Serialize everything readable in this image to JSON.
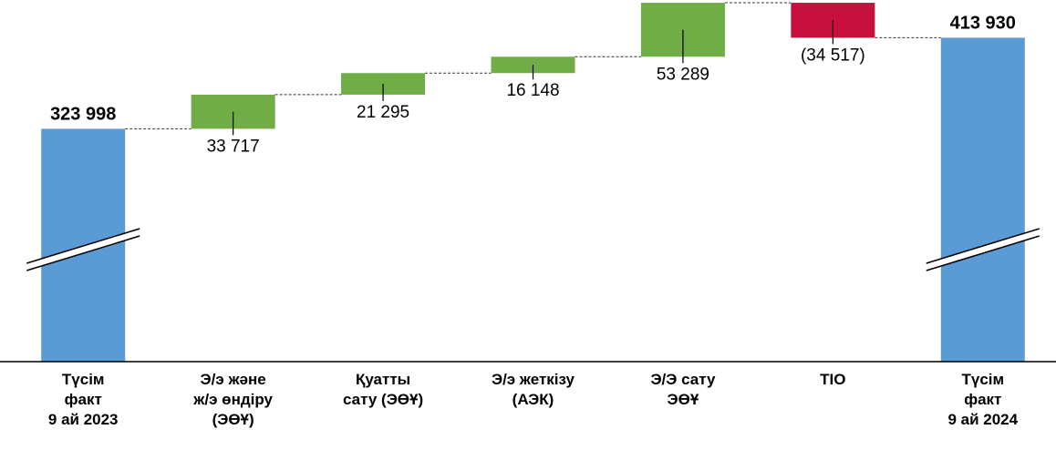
{
  "chart_data": {
    "type": "waterfall",
    "categories": [
      [
        "Түсім",
        "факт",
        "9 ай 2023"
      ],
      [
        "Э/э және",
        "ж/э өндіру",
        "(ЭӨҰ)"
      ],
      [
        "Қуатты",
        "сату (ЭӨҰ)"
      ],
      [
        "Э/э жеткізу",
        "(АЭК)"
      ],
      [
        "Э/Э сату",
        "ЭӨҰ"
      ],
      [
        "ТІО"
      ],
      [
        "Түсім",
        "факт",
        "9 ай 2024"
      ]
    ],
    "values": [
      323998,
      33717,
      21295,
      16148,
      53289,
      -34517,
      413930
    ],
    "value_labels": [
      "323 998",
      "33 717",
      "21 295",
      "16 148",
      "53 289",
      "(34 517)",
      "413 930"
    ],
    "measure": [
      "total",
      "relative",
      "relative",
      "relative",
      "relative",
      "relative",
      "total"
    ],
    "total_color": "#5b9bd5",
    "increase_color": "#70ad47",
    "decrease_color": "#c8103e",
    "ylim": [
      94000,
      448500
    ],
    "axis_break": true
  }
}
